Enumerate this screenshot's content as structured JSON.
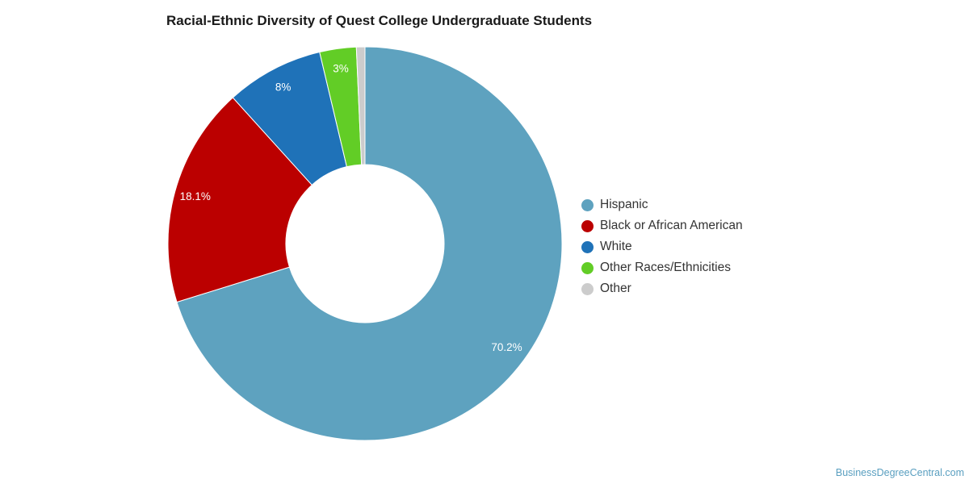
{
  "chart_data": {
    "type": "pie",
    "title": "Racial-Ethnic Diversity of Quest College Undergraduate Students",
    "donut": true,
    "categories": [
      "Hispanic",
      "Black or African American",
      "White",
      "Other Races/Ethnicities",
      "Other"
    ],
    "values": [
      70.2,
      18.1,
      8,
      3,
      0.7
    ],
    "data_labels": [
      "70.2%",
      "18.1%",
      "8%",
      "3%",
      ""
    ],
    "colors": [
      "#5ea2bf",
      "#bb0000",
      "#1f72b8",
      "#62cd26",
      "#cccccc"
    ],
    "legend_position": "right"
  },
  "credit": "BusinessDegreeCentral.com"
}
